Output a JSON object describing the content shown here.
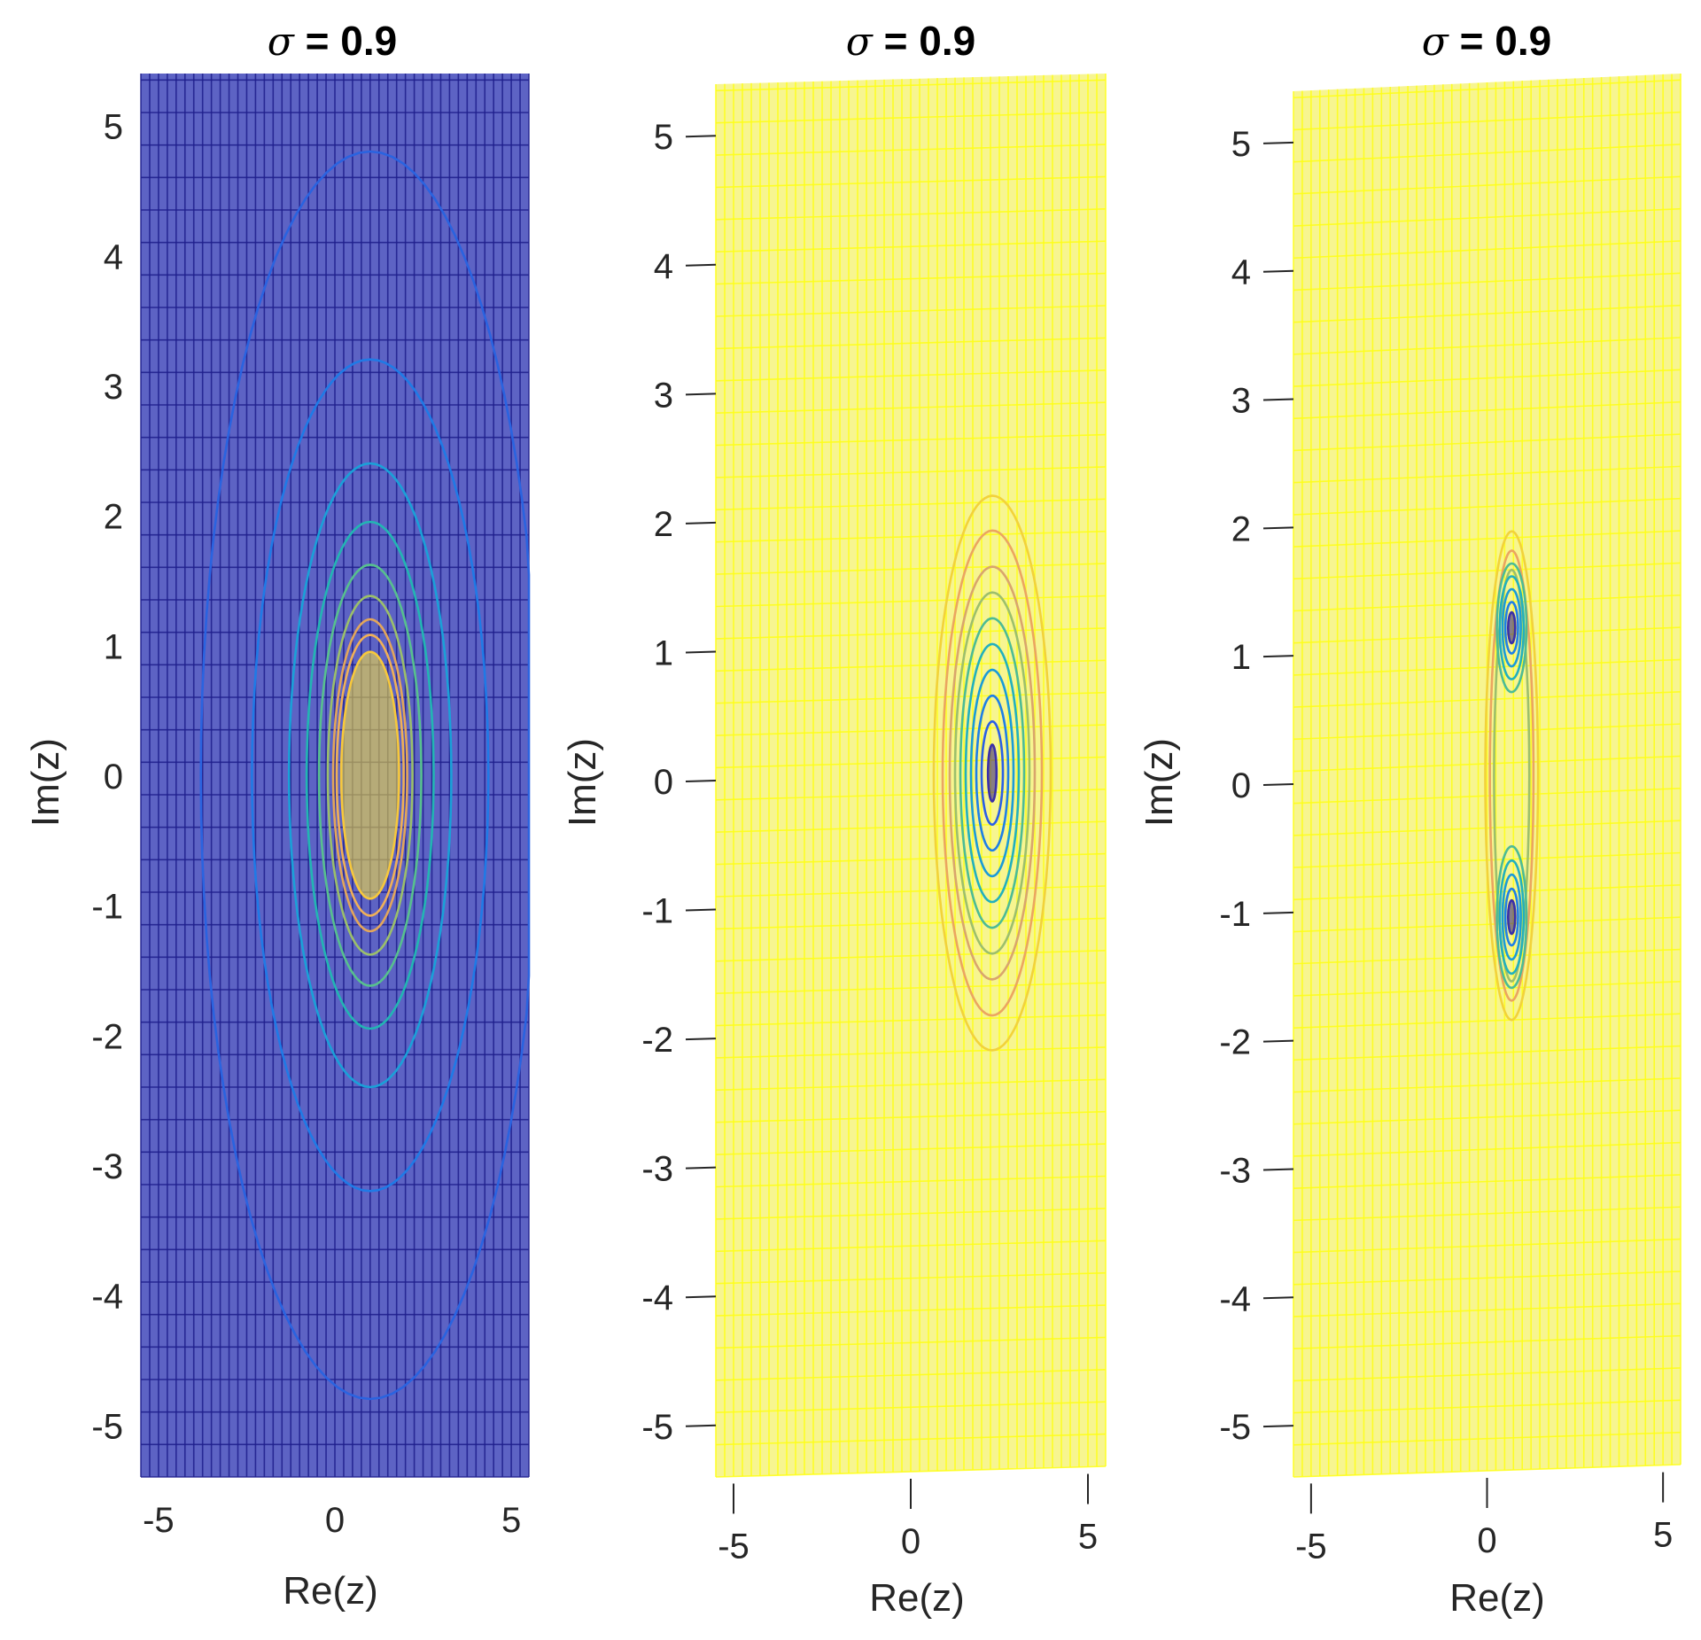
{
  "chart_data": [
    {
      "type": "contour",
      "view": "2d",
      "title": {
        "symbol": "σ",
        "text": " = 0.9"
      },
      "xlabel": "Re(z)",
      "ylabel": "Im(z)",
      "xlim": [
        -5.5,
        5.5
      ],
      "ylim": [
        -5.4,
        5.4
      ],
      "xticks": [
        -5,
        0,
        5
      ],
      "xtick_labels": [
        "-5",
        "0",
        "5"
      ],
      "yticks": [
        5,
        4,
        3,
        2,
        1,
        0,
        -1,
        -2,
        -3,
        -4,
        -5
      ],
      "ytick_labels": [
        "5",
        "4",
        "3",
        "2",
        "1",
        "0",
        "-1",
        "-2",
        "-3",
        "-4",
        "-5"
      ],
      "grid_step": 0.25,
      "mesh_color": "#1e1e8c",
      "background": "#5d63c4",
      "contour_center": [
        1.0,
        0.0
      ],
      "contours": [
        {
          "rx": 4.8,
          "ry": 4.8,
          "color": "#2a63e0"
        },
        {
          "rx": 3.35,
          "ry": 3.2,
          "color": "#1f7ae6"
        },
        {
          "rx": 2.3,
          "ry": 2.4,
          "color": "#1aa0d8"
        },
        {
          "rx": 1.8,
          "ry": 1.95,
          "color": "#22b5b3"
        },
        {
          "rx": 1.45,
          "ry": 1.62,
          "color": "#57c08e"
        },
        {
          "rx": 1.2,
          "ry": 1.38,
          "color": "#9bbf6a"
        },
        {
          "rx": 1.05,
          "ry": 1.2,
          "color": "#e3a65a"
        },
        {
          "rx": 0.95,
          "ry": 1.08,
          "color": "#f0b057"
        },
        {
          "rx": 0.82,
          "ry": 0.95,
          "color": "#f7c83c"
        }
      ],
      "peak_color": "#ffe83a"
    },
    {
      "type": "mesh",
      "view": "3d",
      "title": {
        "symbol": "σ",
        "text": " = 0.9"
      },
      "xlabel": "Re(z)",
      "ylabel": "Im(z)",
      "xlim": [
        -5.5,
        5.5
      ],
      "ylim": [
        -5.4,
        5.4
      ],
      "xticks": [
        -5,
        0,
        5
      ],
      "xtick_labels": [
        "-5",
        "0",
        "5"
      ],
      "yticks": [
        5,
        4,
        3,
        2,
        1,
        0,
        -1,
        -2,
        -3,
        -4,
        -5
      ],
      "ytick_labels": [
        "5",
        "4",
        "3",
        "2",
        "1",
        "0",
        "-1",
        "-2",
        "-3",
        "-4",
        "-5"
      ],
      "grid_step": 0.25,
      "mesh_color": "#ffff14",
      "background": "#f7f590",
      "contour_center": [
        2.3,
        0.0
      ],
      "contours": [
        {
          "rx": 1.65,
          "ry": 2.15,
          "color": "#f2d23a"
        },
        {
          "rx": 1.4,
          "ry": 1.88,
          "color": "#eba560"
        },
        {
          "rx": 1.2,
          "ry": 1.6,
          "color": "#d9a56c"
        },
        {
          "rx": 1.05,
          "ry": 1.4,
          "color": "#9cbf6c"
        },
        {
          "rx": 0.9,
          "ry": 1.2,
          "color": "#4cbb95"
        },
        {
          "rx": 0.75,
          "ry": 1.0,
          "color": "#22b0bd"
        },
        {
          "rx": 0.6,
          "ry": 0.8,
          "color": "#1a9bd8"
        },
        {
          "rx": 0.45,
          "ry": 0.6,
          "color": "#1e7fe6"
        },
        {
          "rx": 0.3,
          "ry": 0.4,
          "color": "#2a5fe6"
        },
        {
          "rx": 0.12,
          "ry": 0.22,
          "color": "#3a2fa8"
        }
      ],
      "peak_color": "#2c1a7c"
    },
    {
      "type": "mesh",
      "view": "3d",
      "title": {
        "symbol": "σ",
        "text": " = 0.9"
      },
      "xlabel": "Re(z)",
      "ylabel": "Im(z)",
      "xlim": [
        -5.5,
        5.5
      ],
      "ylim": [
        -5.4,
        5.4
      ],
      "xticks": [
        -5,
        0,
        5
      ],
      "xtick_labels": [
        "-5",
        "0",
        "5"
      ],
      "yticks": [
        5,
        4,
        3,
        2,
        1,
        0,
        -1,
        -2,
        -3,
        -4,
        -5
      ],
      "ytick_labels": [
        "5",
        "4",
        "3",
        "2",
        "1",
        "0",
        "-1",
        "-2",
        "-3",
        "-4",
        "-5"
      ],
      "grid_step": 0.25,
      "mesh_color": "#ffff14",
      "background": "#f7f590",
      "outer_contours": [
        {
          "center": [
            0.7,
            0.0
          ],
          "rx": 0.75,
          "ry": 1.9,
          "color": "#f2d23a"
        },
        {
          "center": [
            0.7,
            0.0
          ],
          "rx": 0.62,
          "ry": 1.75,
          "color": "#eba560"
        },
        {
          "center": [
            0.7,
            0.0
          ],
          "rx": 0.5,
          "ry": 1.6,
          "color": "#9cbf6c"
        }
      ],
      "lobes": [
        {
          "center": [
            0.7,
            1.15
          ],
          "contours": [
            {
              "rx": 0.42,
              "ry": 0.5,
              "color": "#4cbb95"
            },
            {
              "rx": 0.34,
              "ry": 0.4,
              "color": "#22b0bd"
            },
            {
              "rx": 0.26,
              "ry": 0.3,
              "color": "#1a9bd8"
            },
            {
              "rx": 0.18,
              "ry": 0.2,
              "color": "#1e7fe6"
            },
            {
              "rx": 0.1,
              "ry": 0.12,
              "color": "#3a2fa8"
            }
          ]
        },
        {
          "center": [
            0.7,
            -1.1
          ],
          "contours": [
            {
              "rx": 0.42,
              "ry": 0.55,
              "color": "#4cbb95"
            },
            {
              "rx": 0.34,
              "ry": 0.44,
              "color": "#22b0bd"
            },
            {
              "rx": 0.26,
              "ry": 0.33,
              "color": "#1a9bd8"
            },
            {
              "rx": 0.18,
              "ry": 0.22,
              "color": "#1e7fe6"
            },
            {
              "rx": 0.1,
              "ry": 0.13,
              "color": "#3a2fa8"
            }
          ]
        }
      ],
      "peak_color": "#2c1a7c"
    }
  ]
}
